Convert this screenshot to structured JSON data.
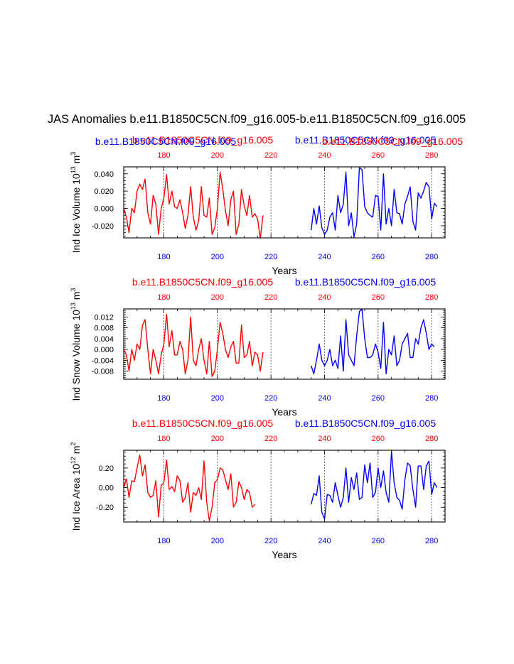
{
  "title": "JAS Anomalies b.e11.B1850C5CN.f09_g16.005-b.e11.B1850C5CN.f09_g16.005",
  "colors": {
    "case1": "#ff0000",
    "case2": "#0000ff",
    "axis": "#000000"
  },
  "chart_data": [
    {
      "type": "line",
      "ylabel": "Ind Ice Volume 10",
      "yexp": "13",
      "yunit": " m",
      "yunitexp": "3",
      "xlabel": "Years",
      "xlim": [
        165,
        285
      ],
      "ylim": [
        -0.034,
        0.048
      ],
      "yticks": [
        -0.02,
        0.0,
        0.02,
        0.04
      ],
      "ytick_labels": [
        "-0.020",
        "0.000",
        "0.020",
        "0.040"
      ],
      "xticks": [
        180,
        200,
        220,
        240,
        260,
        280
      ],
      "xtick_labels": [
        "180",
        "200",
        "220",
        "240",
        "260",
        "280"
      ],
      "top_labels_red": [
        "180",
        "200",
        "220",
        "240",
        "260",
        "280"
      ],
      "case_label_red_left": "b.e11.B1850C5CN.f09_g16.005",
      "case_label_blue_left": "b.e11.B1850C5CN.f09_g16.005",
      "case_label_blue_right": "b.e11.B1850C5CN.f09_g16.005",
      "case_label_red_right": "b.e11.B1850C5CN.f09_g16.005",
      "dashed_x": [
        180,
        200,
        220,
        240,
        260,
        280
      ],
      "series": [
        {
          "name": "red",
          "x0": 165,
          "values": [
            0.0,
            -0.01,
            -0.028,
            0.0,
            -0.005,
            0.02,
            0.028,
            0.022,
            0.034,
            -0.005,
            -0.018,
            0.015,
            0.005,
            -0.03,
            0.0,
            0.012,
            0.039,
            0.005,
            0.02,
            0.002,
            0.0,
            0.01,
            -0.005,
            -0.023,
            -0.008,
            0.025,
            -0.01,
            -0.025,
            -0.014,
            0.025,
            -0.008,
            -0.01,
            0.012,
            -0.03,
            -0.022,
            0.0,
            0.042,
            0.022,
            -0.002,
            -0.02,
            0.01,
            0.02,
            -0.03,
            -0.018,
            0.022,
            0.003,
            -0.008,
            0.015,
            -0.01,
            -0.006,
            -0.012,
            -0.035,
            -0.008
          ]
        },
        {
          "name": "blue",
          "x0": 235,
          "values": [
            -0.025,
            0.0,
            -0.018,
            0.003,
            -0.022,
            -0.03,
            -0.025,
            -0.01,
            -0.005,
            -0.025,
            0.015,
            -0.005,
            0.005,
            0.042,
            -0.02,
            -0.005,
            -0.033,
            -0.018,
            0.047,
            0.045,
            0.002,
            -0.005,
            -0.008,
            -0.01,
            0.015,
            0.014,
            -0.025,
            0.04,
            -0.018,
            0.0,
            -0.02,
            0.022,
            -0.005,
            -0.006,
            -0.018,
            0.005,
            0.014,
            0.025,
            -0.015,
            -0.025,
            0.018,
            0.012,
            0.02,
            0.03,
            0.025,
            -0.012,
            0.006,
            0.002
          ]
        }
      ]
    },
    {
      "type": "line",
      "ylabel": "Ind Snow Volume 10",
      "yexp": "13",
      "yunit": " m",
      "yunitexp": "3",
      "xlabel": "Years",
      "xlim": [
        165,
        285
      ],
      "ylim": [
        -0.011,
        0.015
      ],
      "yticks": [
        -0.008,
        -0.004,
        0.0,
        0.004,
        0.008,
        0.012
      ],
      "ytick_labels": [
        "-0.008",
        "-0.004",
        "0.000",
        "0.004",
        "0.008",
        "0.012"
      ],
      "xticks": [
        180,
        200,
        220,
        240,
        260,
        280
      ],
      "xtick_labels": [
        "180",
        "200",
        "220",
        "240",
        "260",
        "280"
      ],
      "top_labels_red": [
        "180",
        "200",
        "220",
        "240",
        "260",
        "280"
      ],
      "case_label_red_left": "b.e11.B1850C5CN.f09_g16.005",
      "case_label_blue_right": "b.e11.B1850C5CN.f09_g16.005",
      "dashed_x": [
        180,
        200,
        220,
        240,
        260,
        280
      ],
      "series": [
        {
          "name": "red",
          "x0": 165,
          "values": [
            0.0,
            -0.002,
            -0.008,
            0.0,
            -0.004,
            0.002,
            0.0,
            0.009,
            0.011,
            0.0,
            -0.009,
            0.0,
            -0.004,
            -0.009,
            -0.002,
            0.002,
            0.013,
            0.001,
            0.007,
            -0.002,
            -0.002,
            0.003,
            0.0,
            -0.009,
            -0.004,
            0.012,
            -0.004,
            -0.006,
            0.0,
            0.004,
            -0.004,
            -0.009,
            0.003,
            -0.01,
            -0.008,
            0.0,
            0.01,
            0.006,
            0.0,
            -0.003,
            0.001,
            0.003,
            -0.005,
            -0.005,
            0.009,
            -0.003,
            -0.002,
            0.003,
            -0.006,
            -0.001,
            -0.002,
            -0.008,
            -0.001
          ]
        },
        {
          "name": "blue",
          "x0": 235,
          "values": [
            -0.006,
            -0.009,
            -0.004,
            0.002,
            -0.004,
            -0.006,
            -0.004,
            0.0,
            -0.006,
            -0.004,
            -0.007,
            0.005,
            -0.008,
            0.011,
            -0.002,
            -0.004,
            -0.006,
            0.005,
            0.014,
            0.015,
            0.004,
            -0.003,
            -0.003,
            -0.002,
            0.002,
            -0.001,
            -0.007,
            0.01,
            -0.009,
            0.0,
            -0.002,
            0.005,
            -0.006,
            -0.004,
            0.002,
            0.004,
            0.006,
            -0.003,
            -0.003,
            0.004,
            0.002,
            0.008,
            0.011,
            0.006,
            0.0,
            0.002,
            0.001
          ]
        }
      ]
    },
    {
      "type": "line",
      "ylabel": "Ind Ice Area 10",
      "yexp": "12",
      "yunit": " m",
      "yunitexp": "2",
      "xlabel": "Years",
      "xlim": [
        165,
        285
      ],
      "ylim": [
        -0.35,
        0.38
      ],
      "yticks": [
        -0.2,
        0.0,
        0.2
      ],
      "ytick_labels": [
        "-0.20",
        "0.00",
        "0.20"
      ],
      "xticks": [
        180,
        200,
        220,
        240,
        260,
        280
      ],
      "xtick_labels": [
        "180",
        "200",
        "220",
        "240",
        "260",
        "280"
      ],
      "top_labels_red": [
        "180",
        "200",
        "220",
        "240",
        "260",
        "280"
      ],
      "case_label_red_left": "b.e11.B1850C5CN.f09_g16.005",
      "case_label_blue_right": "b.e11.B1850C5CN.f09_g16.005",
      "dashed_x": [
        180,
        200,
        220,
        240,
        260,
        280
      ],
      "series": [
        {
          "name": "red",
          "x0": 165,
          "values": [
            0.0,
            0.09,
            -0.1,
            0.07,
            0.06,
            0.2,
            0.33,
            0.12,
            0.23,
            -0.05,
            -0.1,
            -0.08,
            0.07,
            -0.3,
            0.02,
            0.05,
            0.28,
            -0.02,
            0.01,
            -0.04,
            0.12,
            0.07,
            -0.15,
            -0.1,
            0.05,
            -0.25,
            -0.05,
            -0.08,
            0.0,
            -0.12,
            0.27,
            -0.15,
            -0.34,
            -0.2,
            0.05,
            0.08,
            0.2,
            0.18,
            0.08,
            -0.02,
            0.14,
            -0.2,
            -0.15,
            0.06,
            0.0,
            -0.12,
            -0.02,
            -0.05,
            -0.2,
            -0.17
          ]
        },
        {
          "name": "blue",
          "x0": 235,
          "values": [
            -0.17,
            -0.06,
            -0.08,
            0.12,
            -0.25,
            -0.32,
            -0.07,
            -0.08,
            -0.15,
            0.05,
            -0.08,
            -0.2,
            -0.1,
            0.2,
            -0.15,
            0.1,
            -0.02,
            0.15,
            -0.12,
            -0.1,
            0.23,
            0.05,
            0.25,
            -0.1,
            -0.05,
            0.2,
            0.0,
            0.17,
            -0.05,
            -0.15,
            0.37,
            0.05,
            -0.1,
            -0.13,
            -0.22,
            0.08,
            0.25,
            0.22,
            -0.02,
            -0.2,
            0.22,
            0.22,
            -0.02,
            0.22,
            0.27,
            -0.07,
            0.05,
            0.0
          ]
        }
      ]
    }
  ]
}
